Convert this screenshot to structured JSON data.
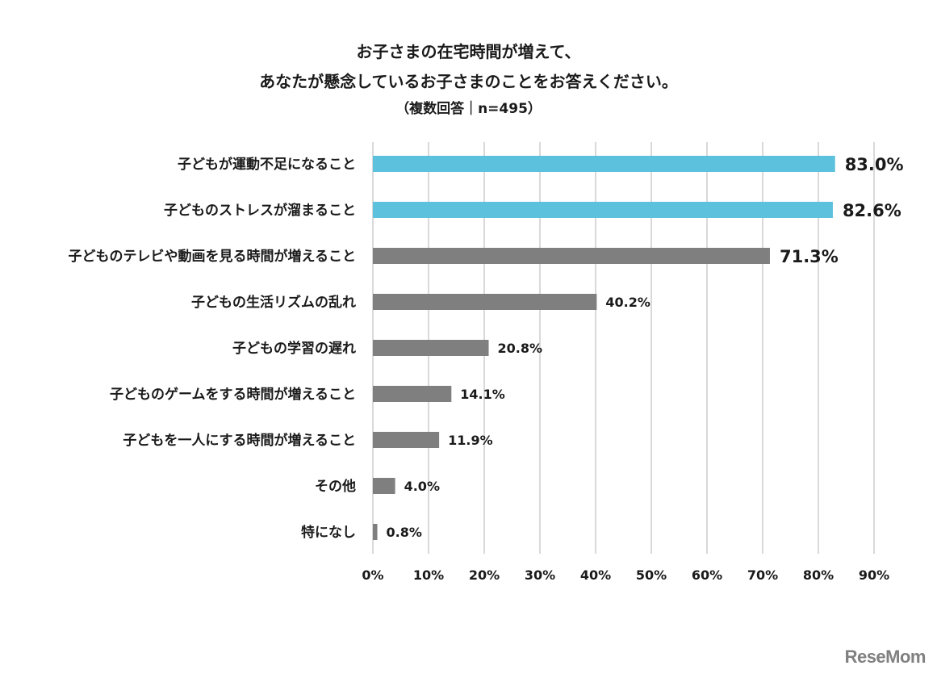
{
  "header": {
    "title_line1": "お子さまの在宅時間が増えて、",
    "title_line2": "あなたが懸念しているお子さまのことをお答えください。",
    "subtitle": "（複数回答｜n=495）"
  },
  "brand": {
    "logo_text": "ReseMom"
  },
  "colors": {
    "highlight": "#5bc1dc",
    "normal": "#7f7f7f",
    "grid": "#d9d9d9"
  },
  "chart_data": {
    "type": "bar",
    "orientation": "horizontal",
    "categories": [
      "子どもが運動不足になること",
      "子どものストレスが溜まること",
      "子どものテレビや動画を見る時間が増えること",
      "子どもの生活リズムの乱れ",
      "子どもの学習の遅れ",
      "子どものゲームをする時間が増えること",
      "子どもを一人にする時間が増えること",
      "その他",
      "特になし"
    ],
    "values": [
      83.0,
      82.6,
      71.3,
      40.2,
      20.8,
      14.1,
      11.9,
      4.0,
      0.8
    ],
    "value_labels": [
      "83.0%",
      "82.6%",
      "71.3%",
      "40.2%",
      "20.8%",
      "14.1%",
      "11.9%",
      "4.0%",
      "0.8%"
    ],
    "highlighted": [
      true,
      true,
      false,
      false,
      false,
      false,
      false,
      false,
      false
    ],
    "label_size": [
      "large",
      "large",
      "large",
      "normal",
      "normal",
      "normal",
      "normal",
      "normal",
      "normal"
    ],
    "xlim": [
      0,
      90
    ],
    "xticks": [
      0,
      10,
      20,
      30,
      40,
      50,
      60,
      70,
      80,
      90
    ],
    "xtick_labels": [
      "0%",
      "10%",
      "20%",
      "30%",
      "40%",
      "50%",
      "60%",
      "70%",
      "80%",
      "90%"
    ],
    "grid": true,
    "legend": "none"
  }
}
